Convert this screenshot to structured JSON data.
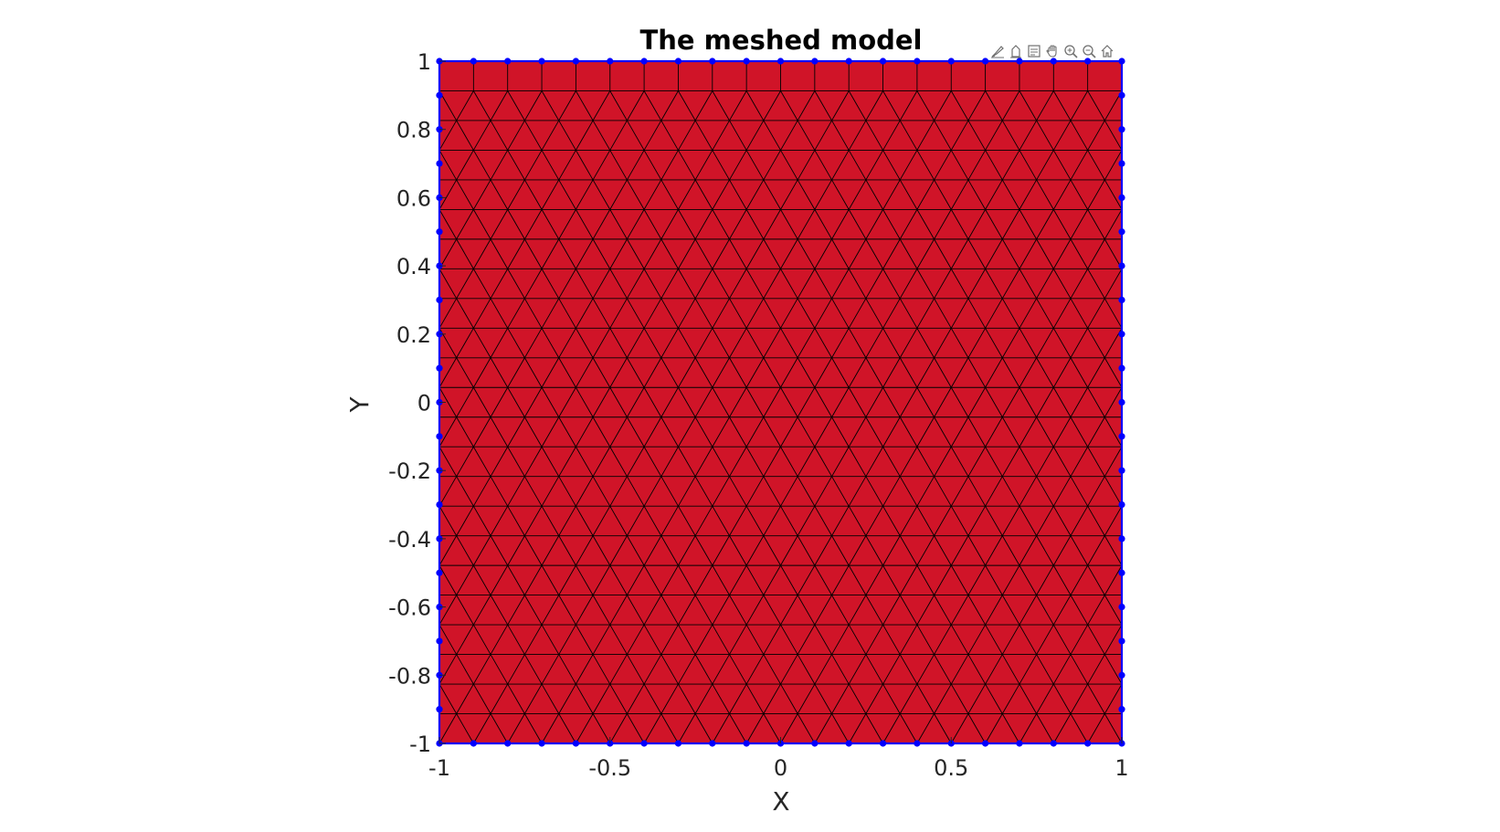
{
  "chart_data": {
    "type": "mesh",
    "title": "The meshed model",
    "xlabel": "X",
    "ylabel": "Y",
    "xlim": [
      -1,
      1
    ],
    "ylim": [
      -1,
      1
    ],
    "xticks": [
      -1,
      -0.5,
      0,
      0.5,
      1
    ],
    "xtick_labels": [
      "-1",
      "-0.5",
      "0",
      "0.5",
      "1"
    ],
    "yticks": [
      -1,
      -0.8,
      -0.6,
      -0.4,
      -0.2,
      0,
      0.2,
      0.4,
      0.6,
      0.8,
      1
    ],
    "ytick_labels": [
      "-1",
      "-0.8",
      "-0.6",
      "-0.4",
      "-0.2",
      "0",
      "0.2",
      "0.4",
      "0.6",
      "0.8",
      "1"
    ],
    "domain": {
      "shape": "square",
      "x": [
        -1,
        1
      ],
      "y": [
        -1,
        1
      ]
    },
    "element_type": "triangle",
    "boundary_node_spacing": 0.1,
    "face_color": "#d01428",
    "edge_color": "#000000",
    "boundary_color": "#0000ff",
    "grid": false
  },
  "toolbar": {
    "buttons": [
      {
        "name": "brush-icon"
      },
      {
        "name": "datatip-icon"
      },
      {
        "name": "legend-icon"
      },
      {
        "name": "pan-icon"
      },
      {
        "name": "zoom-in-icon"
      },
      {
        "name": "zoom-out-icon"
      },
      {
        "name": "home-icon"
      }
    ]
  }
}
